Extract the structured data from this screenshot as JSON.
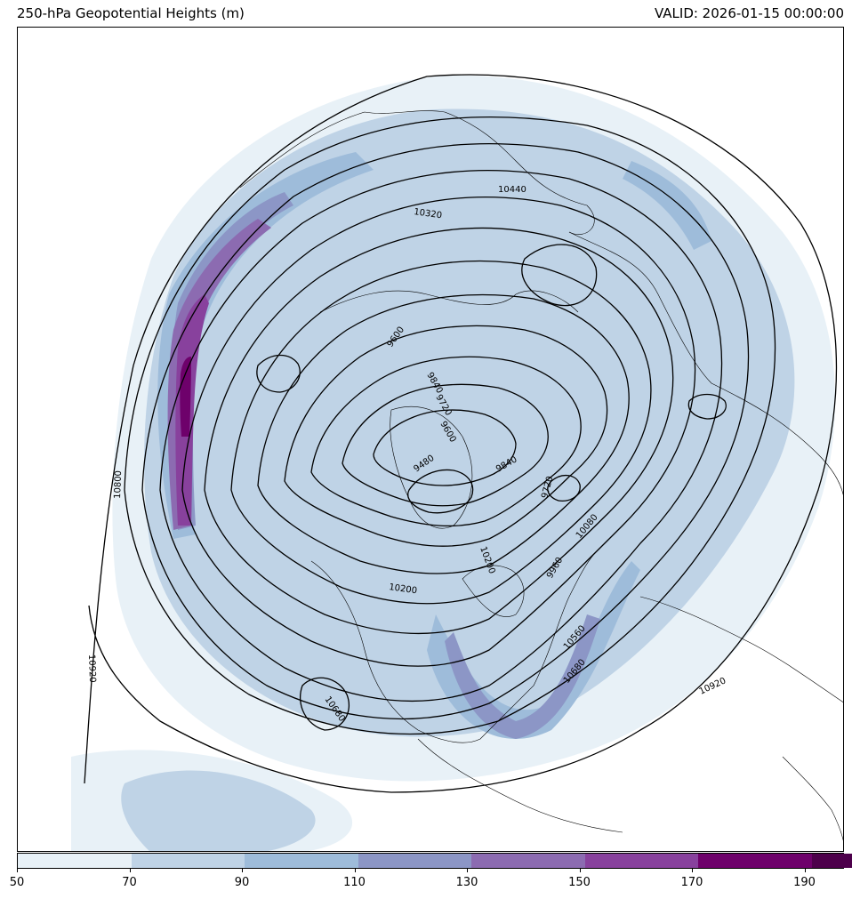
{
  "title": "250-hPa Geopotential Heights (m)",
  "valid": "VALID: 2026-01-15 00:00:00",
  "colorbar": {
    "ticks": [
      "50",
      "70",
      "90",
      "110",
      "130",
      "150",
      "170",
      "190"
    ],
    "colors": [
      "#e8f1f7",
      "#bfd3e6",
      "#9ebcda",
      "#8c96c6",
      "#8c6bb1",
      "#88419d",
      "#6e016b",
      "#4d004b"
    ]
  },
  "contour_labels": [
    "10440",
    "10320",
    "9600",
    "9840",
    "9720",
    "9600",
    "9480",
    "9840",
    "9720",
    "10080",
    "10200",
    "10560",
    "10680",
    "10920",
    "10800",
    "10920",
    "10680",
    "10200",
    "9960"
  ],
  "map_features": [
    "coastlines",
    "borders",
    "us-states",
    "jet-stream-shading",
    "height-contours"
  ]
}
